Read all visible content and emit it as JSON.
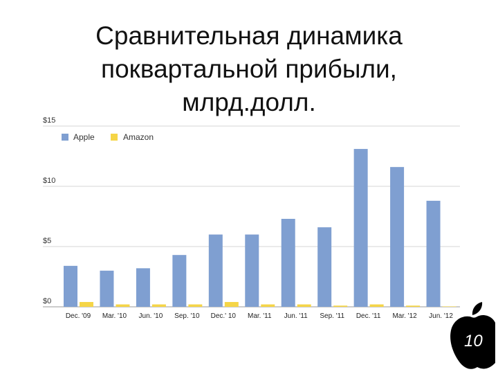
{
  "slide": {
    "title_lines": [
      "Сравнительная динамика",
      "поквартальной прибыли,",
      "млрд.долл."
    ],
    "badge_number": "10",
    "badge_icon": "apple-logo-icon"
  },
  "chart_data": {
    "type": "bar",
    "title": "Сравнительная динамика поквартальной прибыли, млрд.долл.",
    "categories": [
      "Dec. '09",
      "Mar. '10",
      "Jun. '10",
      "Sep. '10",
      "Dec.' 10",
      "Mar. '11",
      "Jun. '11",
      "Sep. '11",
      "Dec. '11",
      "Mar. '12",
      "Jun. '12"
    ],
    "series": [
      {
        "name": "Apple",
        "color": "#7f9fd1",
        "values": [
          3.4,
          3.0,
          3.2,
          4.3,
          6.0,
          6.0,
          7.3,
          6.6,
          13.1,
          11.6,
          8.8
        ]
      },
      {
        "name": "Amazon",
        "color": "#f5d547",
        "values": [
          0.4,
          0.2,
          0.2,
          0.2,
          0.4,
          0.2,
          0.2,
          0.1,
          0.2,
          0.1,
          0.0
        ]
      }
    ],
    "y_ticks": [
      "$0",
      "$5",
      "$10",
      "$15"
    ],
    "y_tick_values": [
      0,
      5,
      10,
      15
    ],
    "ylim": [
      0,
      15
    ],
    "grid": true,
    "legend": "top-left"
  }
}
